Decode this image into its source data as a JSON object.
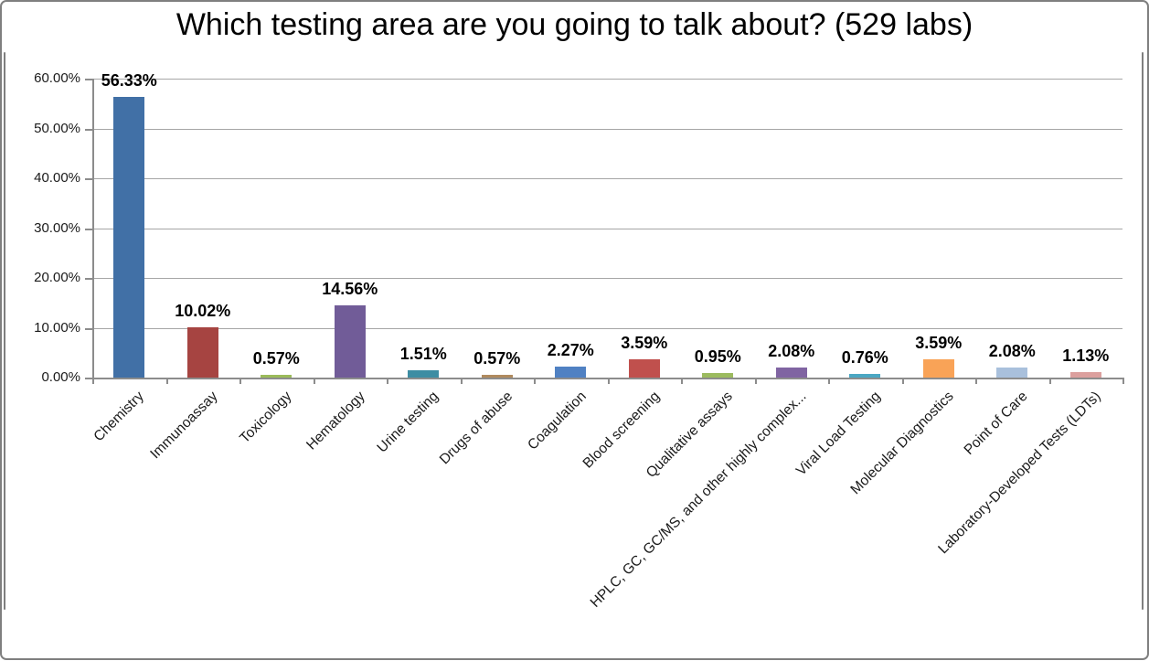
{
  "chart_data": {
    "type": "bar",
    "title": "Which testing area are you going to talk about? (529 labs)",
    "categories": [
      "Chemistry",
      "Immunoassay",
      "Toxicology",
      "Hematology",
      "Urine testing",
      "Drugs of abuse",
      "Coagulation",
      "Blood screening",
      "Qualitative assays",
      "HPLC, GC, GC/MS, and other highly complex...",
      "Viral Load Testing",
      "Molecular Diagnostics",
      "Point of Care",
      "Laboratory-Developed Tests (LDTs)"
    ],
    "values": [
      56.33,
      10.02,
      0.57,
      14.56,
      1.51,
      0.57,
      2.27,
      3.59,
      0.95,
      2.08,
      0.76,
      3.59,
      2.08,
      1.13
    ],
    "value_labels": [
      "56.33%",
      "10.02%",
      "0.57%",
      "14.56%",
      "1.51%",
      "0.57%",
      "2.27%",
      "3.59%",
      "0.95%",
      "2.08%",
      "0.76%",
      "3.59%",
      "2.08%",
      "1.13%"
    ],
    "bar_colors": [
      "#4170A6",
      "#A64441",
      "#9BBB59",
      "#715C98",
      "#3D8DA3",
      "#B08A5E",
      "#5081C3",
      "#C0504D",
      "#9CBB5F",
      "#8064A2",
      "#4BA7C3",
      "#F9A357",
      "#A9C0DC",
      "#DCA09E"
    ],
    "y_tick_labels": [
      "0.00%",
      "10.00%",
      "20.00%",
      "30.00%",
      "40.00%",
      "50.00%",
      "60.00%"
    ],
    "ylim": [
      0,
      60
    ],
    "grid": true,
    "legend_position": "none",
    "colors": {
      "grid": "#A6A6A6",
      "axis": "#8C8C8C",
      "frame_border": "#7F7F7F",
      "background": "#FFFFFF",
      "text": "#000000"
    }
  }
}
